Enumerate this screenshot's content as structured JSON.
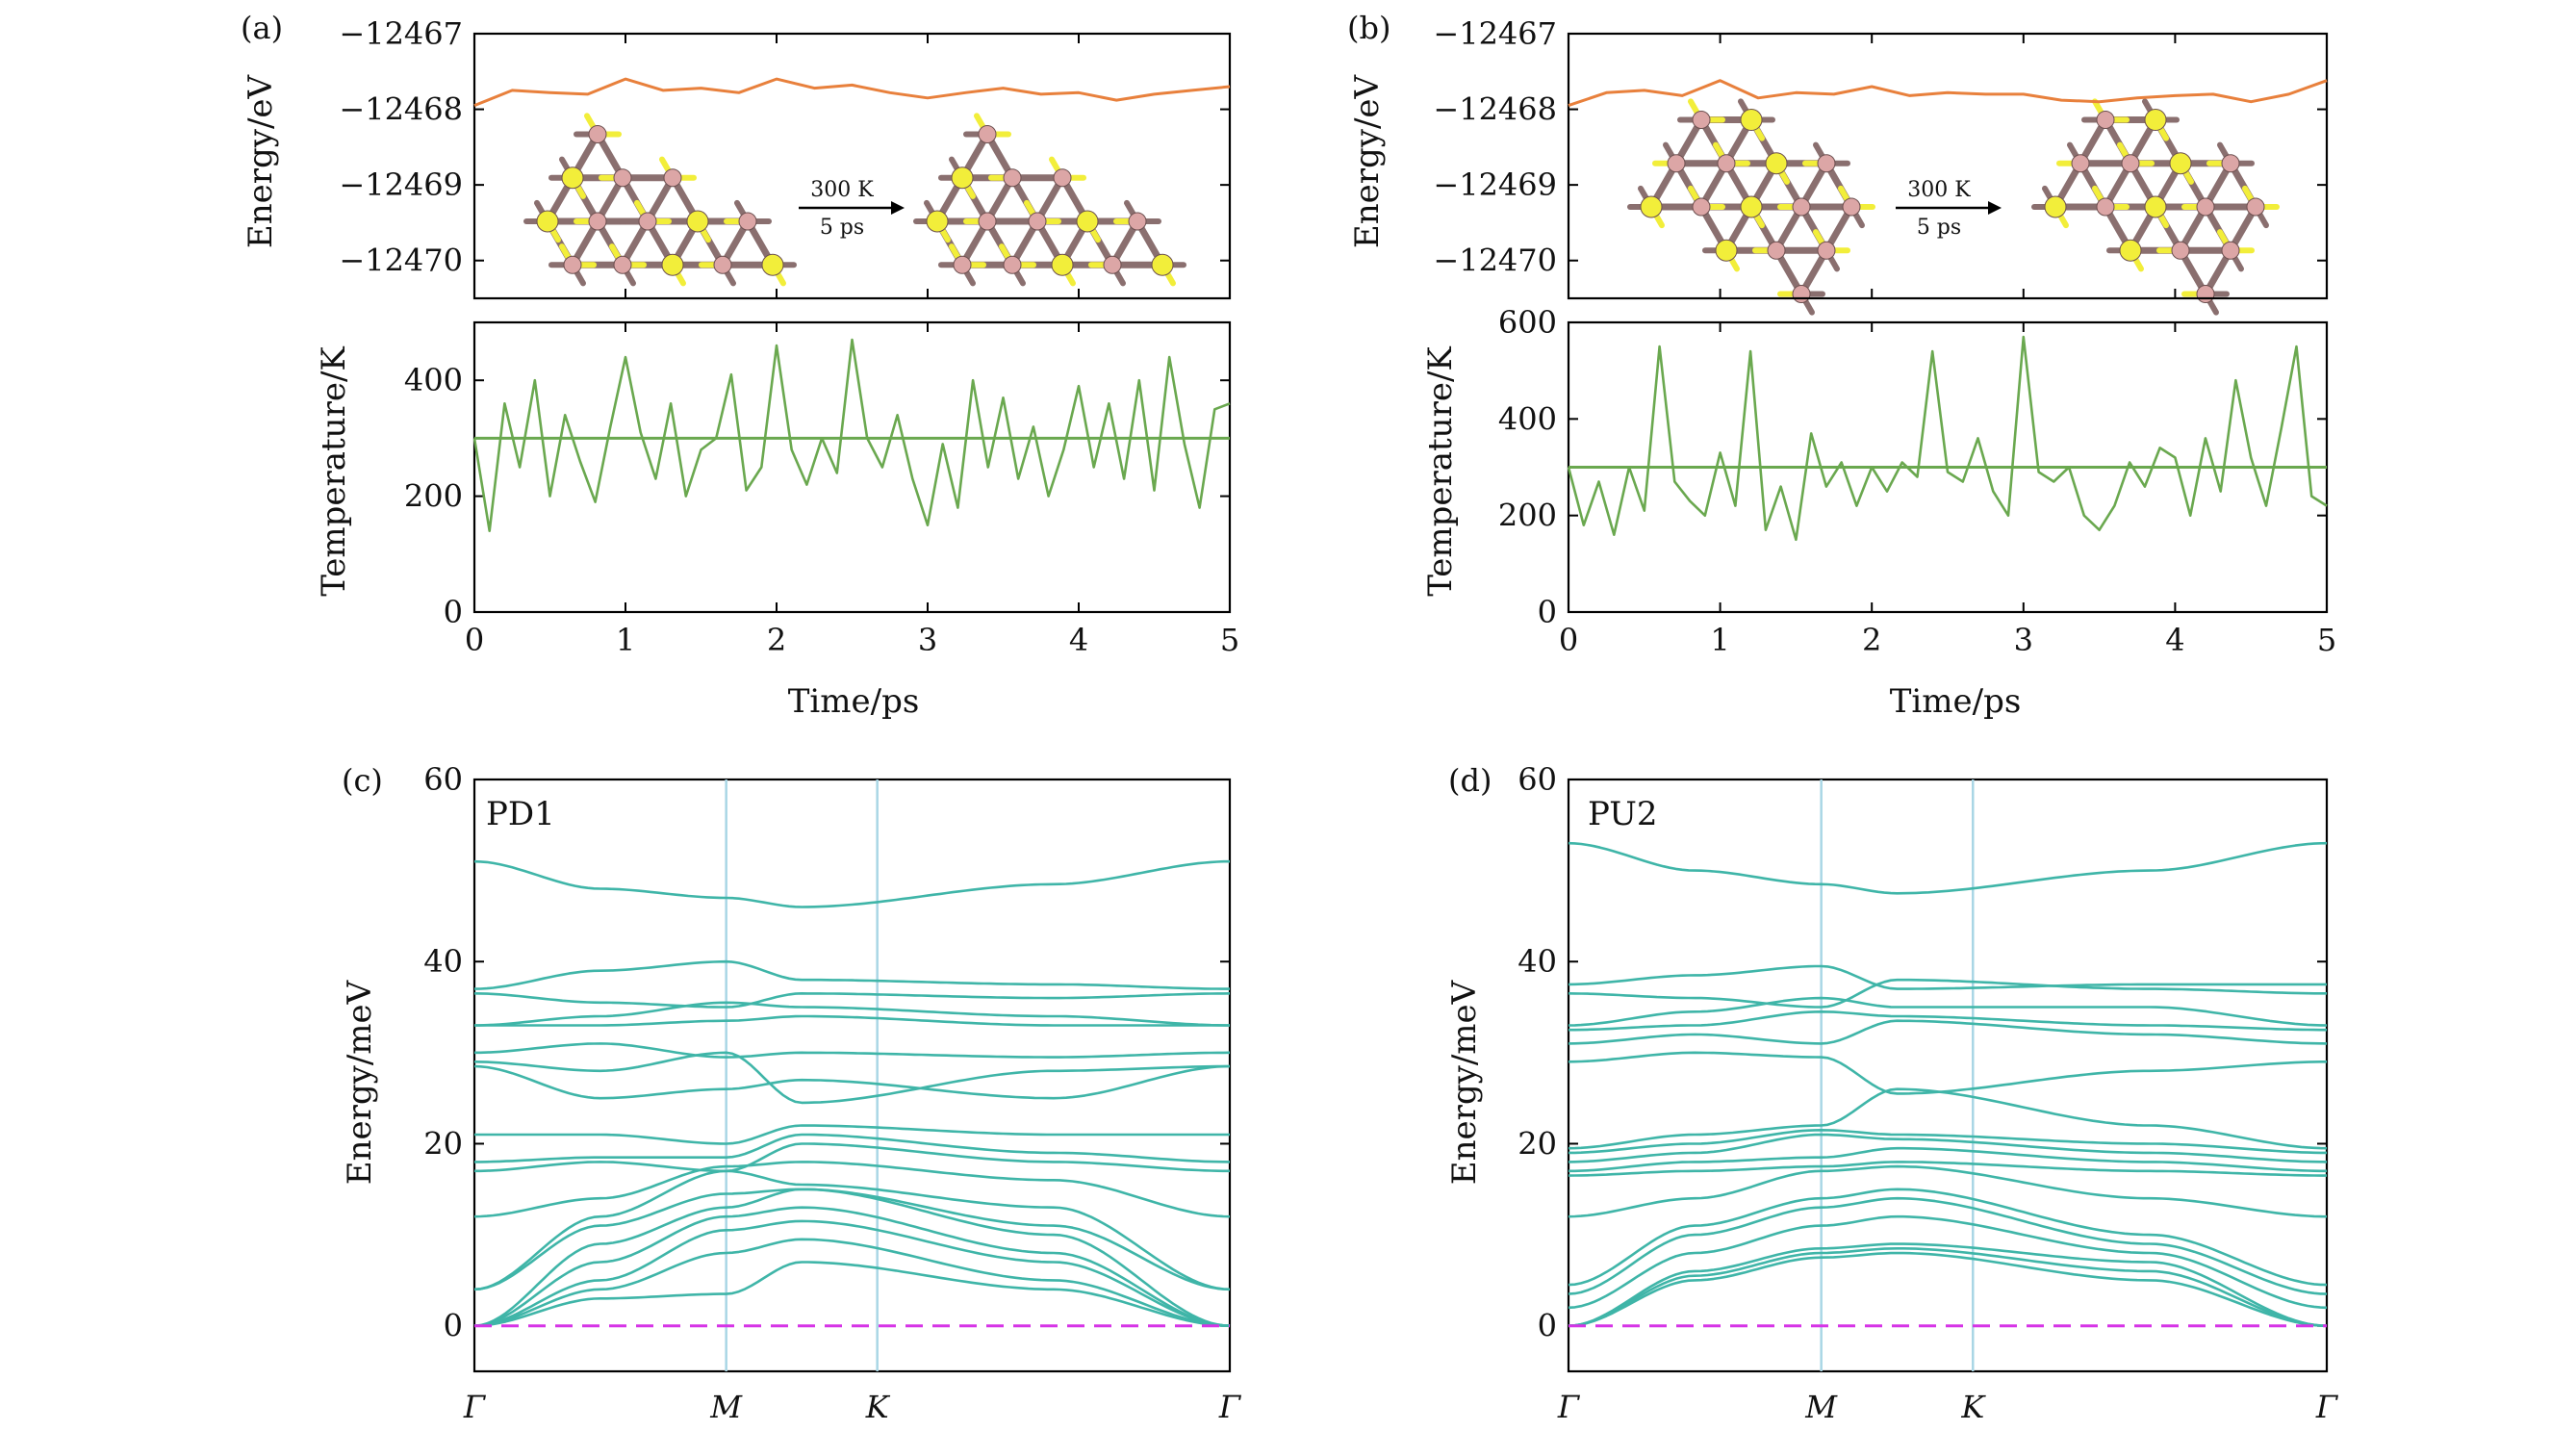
{
  "colors": {
    "energy_line": "#e8803c",
    "temperature_line": "#6aa84f",
    "phonon_line": "#3fb5a8",
    "kpoint_divider": "#a9d6e5",
    "zero_line": "#d633e6",
    "atom_pink": "#dca6a6",
    "atom_yellow": "#f2ee3a",
    "bond": "#8a6f6f"
  },
  "chart_data": [
    {
      "panel": "(a)",
      "type": "line",
      "subplots": [
        {
          "name": "energy",
          "ylabel": "Energy/eV",
          "ylim": [
            -12470.5,
            -12467
          ],
          "yticks": [
            -12467,
            -12468,
            -12469,
            -12470
          ],
          "ytick_labels": [
            "−12467",
            "−12468",
            "−12469",
            "−12470"
          ],
          "series": [
            {
              "x": [
                0,
                0.25,
                0.5,
                0.75,
                1,
                1.25,
                1.5,
                1.75,
                2,
                2.25,
                2.5,
                2.75,
                3,
                3.25,
                3.5,
                3.75,
                4,
                4.25,
                4.5,
                4.75,
                5
              ],
              "y": [
                -12467.95,
                -12467.75,
                -12467.78,
                -12467.8,
                -12467.6,
                -12467.75,
                -12467.72,
                -12467.78,
                -12467.6,
                -12467.72,
                -12467.68,
                -12467.78,
                -12467.85,
                -12467.78,
                -12467.72,
                -12467.8,
                -12467.78,
                -12467.88,
                -12467.8,
                -12467.75,
                -12467.7
              ]
            }
          ],
          "inset": {
            "condition": "300 K",
            "duration": "5 ps"
          }
        },
        {
          "name": "temperature",
          "ylabel": "Temperature/K",
          "xlabel": "Time/ps",
          "ylim": [
            0,
            500
          ],
          "yticks": [
            0,
            200,
            400
          ],
          "xlim": [
            0,
            5
          ],
          "xticks": [
            0,
            1,
            2,
            3,
            4,
            5
          ],
          "reference_line": 300,
          "series": [
            {
              "x": [
                0,
                0.1,
                0.2,
                0.3,
                0.4,
                0.5,
                0.6,
                0.7,
                0.8,
                0.9,
                1,
                1.1,
                1.2,
                1.3,
                1.4,
                1.5,
                1.6,
                1.7,
                1.8,
                1.9,
                2,
                2.1,
                2.2,
                2.3,
                2.4,
                2.5,
                2.6,
                2.7,
                2.8,
                2.9,
                3,
                3.1,
                3.2,
                3.3,
                3.4,
                3.5,
                3.6,
                3.7,
                3.8,
                3.9,
                4,
                4.1,
                4.2,
                4.3,
                4.4,
                4.5,
                4.6,
                4.7,
                4.8,
                4.9,
                5
              ],
              "y": [
                300,
                140,
                360,
                250,
                400,
                200,
                340,
                260,
                190,
                320,
                440,
                310,
                230,
                360,
                200,
                280,
                300,
                410,
                210,
                250,
                460,
                280,
                220,
                300,
                240,
                470,
                300,
                250,
                340,
                230,
                150,
                290,
                180,
                400,
                250,
                370,
                230,
                320,
                200,
                280,
                390,
                250,
                360,
                230,
                400,
                210,
                440,
                290,
                180,
                350,
                360
              ]
            }
          ]
        }
      ]
    },
    {
      "panel": "(b)",
      "type": "line",
      "subplots": [
        {
          "name": "energy",
          "ylabel": "Energy/eV",
          "ylim": [
            -12470.5,
            -12467
          ],
          "yticks": [
            -12467,
            -12468,
            -12469,
            -12470
          ],
          "ytick_labels": [
            "−12467",
            "−12468",
            "−12469",
            "−12470"
          ],
          "series": [
            {
              "x": [
                0,
                0.25,
                0.5,
                0.75,
                1,
                1.25,
                1.5,
                1.75,
                2,
                2.25,
                2.5,
                2.75,
                3,
                3.25,
                3.5,
                3.75,
                4,
                4.25,
                4.5,
                4.75,
                5
              ],
              "y": [
                -12467.95,
                -12467.78,
                -12467.75,
                -12467.82,
                -12467.62,
                -12467.85,
                -12467.78,
                -12467.8,
                -12467.7,
                -12467.82,
                -12467.78,
                -12467.8,
                -12467.8,
                -12467.88,
                -12467.9,
                -12467.85,
                -12467.82,
                -12467.8,
                -12467.9,
                -12467.8,
                -12467.62
              ]
            }
          ],
          "inset": {
            "condition": "300 K",
            "duration": "5 ps"
          }
        },
        {
          "name": "temperature",
          "ylabel": "Temperature/K",
          "xlabel": "Time/ps",
          "ylim": [
            0,
            600
          ],
          "yticks": [
            0,
            200,
            400,
            600
          ],
          "xlim": [
            0,
            5
          ],
          "xticks": [
            0,
            1,
            2,
            3,
            4,
            5
          ],
          "reference_line": 300,
          "series": [
            {
              "x": [
                0,
                0.1,
                0.2,
                0.3,
                0.4,
                0.5,
                0.6,
                0.7,
                0.8,
                0.9,
                1,
                1.1,
                1.2,
                1.3,
                1.4,
                1.5,
                1.6,
                1.7,
                1.8,
                1.9,
                2,
                2.1,
                2.2,
                2.3,
                2.4,
                2.5,
                2.6,
                2.7,
                2.8,
                2.9,
                3,
                3.1,
                3.2,
                3.3,
                3.4,
                3.5,
                3.6,
                3.7,
                3.8,
                3.9,
                4,
                4.1,
                4.2,
                4.3,
                4.4,
                4.5,
                4.6,
                4.7,
                4.8,
                4.9,
                5
              ],
              "y": [
                300,
                180,
                270,
                160,
                300,
                210,
                550,
                270,
                230,
                200,
                330,
                220,
                540,
                170,
                260,
                150,
                370,
                260,
                310,
                220,
                300,
                250,
                310,
                280,
                540,
                290,
                270,
                360,
                250,
                200,
                570,
                290,
                270,
                300,
                200,
                170,
                220,
                310,
                260,
                340,
                320,
                200,
                360,
                250,
                480,
                320,
                220,
                380,
                550,
                240,
                220
              ]
            }
          ]
        }
      ]
    },
    {
      "panel": "(c)",
      "type": "line",
      "label": "PD1",
      "ylabel": "Energy/meV",
      "ylim": [
        -5,
        60
      ],
      "yticks": [
        0,
        20,
        40,
        60
      ],
      "xticks": [
        "Γ",
        "M",
        "K",
        "Γ"
      ],
      "xtick_positions": [
        0,
        1,
        1.6,
        3
      ],
      "zero_line": 0,
      "series": [
        {
          "y": [
            51,
            48,
            47,
            46,
            48.5,
            51
          ]
        },
        {
          "y": [
            37,
            39,
            40,
            38,
            37.5,
            37
          ]
        },
        {
          "y": [
            36.5,
            35.5,
            35,
            36.5,
            36,
            36.5
          ]
        },
        {
          "y": [
            33,
            34,
            35.5,
            35,
            34,
            33
          ]
        },
        {
          "y": [
            33,
            33,
            33.5,
            34,
            33,
            33
          ]
        },
        {
          "y": [
            30,
            31,
            29.5,
            30,
            29.5,
            30
          ]
        },
        {
          "y": [
            29,
            28,
            30,
            24.5,
            28,
            28.5
          ]
        },
        {
          "y": [
            28.5,
            25,
            26,
            27,
            25,
            28.5
          ]
        },
        {
          "y": [
            21,
            21,
            20,
            22,
            21,
            21
          ]
        },
        {
          "y": [
            18,
            18.5,
            18.5,
            21,
            19,
            18
          ]
        },
        {
          "y": [
            17,
            18,
            17,
            20,
            18,
            17
          ]
        },
        {
          "y": [
            12,
            14,
            17.5,
            18,
            16,
            12
          ]
        },
        {
          "y": [
            4,
            12,
            17,
            15.5,
            13,
            4
          ]
        },
        {
          "y": [
            4,
            11,
            14.5,
            15,
            11,
            4
          ]
        },
        {
          "y": [
            0,
            9,
            13,
            15,
            10,
            0
          ]
        },
        {
          "y": [
            0,
            7,
            12,
            13,
            8,
            0
          ]
        },
        {
          "y": [
            0,
            5,
            10.5,
            11.5,
            7,
            0
          ]
        },
        {
          "y": [
            0,
            4,
            8,
            9.5,
            5,
            0
          ]
        },
        {
          "y": [
            0,
            3,
            3.5,
            7,
            4,
            0
          ]
        }
      ]
    },
    {
      "panel": "(d)",
      "type": "line",
      "label": "PU2",
      "ylabel": "Energy/meV",
      "ylim": [
        -5,
        60
      ],
      "yticks": [
        0,
        20,
        40,
        60
      ],
      "xticks": [
        "Γ",
        "M",
        "K",
        "Γ"
      ],
      "xtick_positions": [
        0,
        1,
        1.6,
        3
      ],
      "zero_line": 0,
      "series": [
        {
          "y": [
            53,
            50,
            48.5,
            47.5,
            50,
            53
          ]
        },
        {
          "y": [
            37.5,
            38.5,
            39.5,
            37,
            37.5,
            37.5
          ]
        },
        {
          "y": [
            36.5,
            36,
            35,
            38,
            37,
            36.5
          ]
        },
        {
          "y": [
            33,
            34.5,
            36,
            35,
            35,
            33
          ]
        },
        {
          "y": [
            32.5,
            33,
            34.5,
            34,
            33,
            32.5
          ]
        },
        {
          "y": [
            31,
            32,
            31,
            33.5,
            32,
            31
          ]
        },
        {
          "y": [
            29,
            30,
            29.5,
            25.5,
            28,
            29
          ]
        },
        {
          "y": [
            19.5,
            21,
            22,
            26,
            22,
            19.5
          ]
        },
        {
          "y": [
            19,
            20,
            21.5,
            21,
            20,
            19
          ]
        },
        {
          "y": [
            18,
            19,
            21,
            20.5,
            19,
            18
          ]
        },
        {
          "y": [
            17,
            18,
            18.5,
            19.5,
            18,
            17
          ]
        },
        {
          "y": [
            16.5,
            17,
            17.5,
            18,
            17,
            16.5
          ]
        },
        {
          "y": [
            12,
            14,
            17,
            17.5,
            14,
            12
          ]
        },
        {
          "y": [
            4.5,
            11,
            14,
            15,
            10,
            4.5
          ]
        },
        {
          "y": [
            3.5,
            10,
            13,
            14,
            9,
            3.5
          ]
        },
        {
          "y": [
            2,
            8,
            11,
            12,
            8,
            2
          ]
        },
        {
          "y": [
            0,
            6,
            8.5,
            9,
            7,
            0
          ]
        },
        {
          "y": [
            0,
            5.5,
            8,
            8.5,
            6,
            0
          ]
        },
        {
          "y": [
            0,
            5,
            7.5,
            8,
            5,
            0
          ]
        }
      ]
    }
  ]
}
